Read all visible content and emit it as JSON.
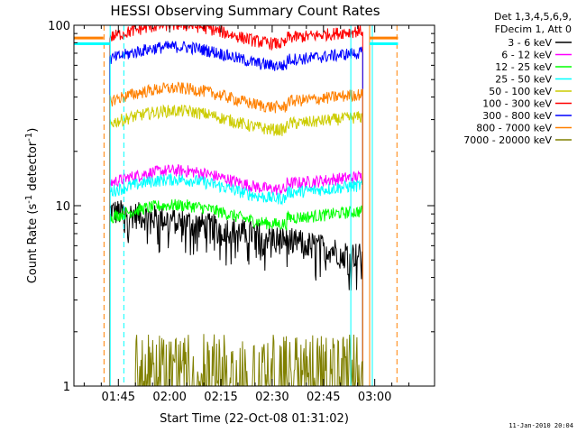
{
  "chart_data": {
    "type": "line",
    "title": "HESSI Observing Summary Count Rates",
    "xlabel": "Start Time (22-Oct-08 01:31:02)",
    "ylabel": "Count Rate (s",
    "ylabel_sup": "-1",
    "ylabel_rest": " detector",
    "ylabel_sup2": "-1",
    "ylabel_end": ")",
    "y_scale": "log",
    "ylim": [
      1,
      100
    ],
    "xlim_minutes": [
      1.53,
      3.3
    ],
    "x_ticks": [
      {
        "t": 105,
        "label": "01:45"
      },
      {
        "t": 120,
        "label": "02:00"
      },
      {
        "t": 135,
        "label": "02:15"
      },
      {
        "t": 150,
        "label": "02:30"
      },
      {
        "t": 165,
        "label": "02:45"
      },
      {
        "t": 180,
        "label": "03:00"
      }
    ],
    "y_ticks": [
      {
        "v": 1,
        "label": "1"
      },
      {
        "v": 10,
        "label": "10"
      },
      {
        "v": 100,
        "label": "100"
      }
    ],
    "legend_title": [
      "Det 1,3,4,5,6,9,",
      "FDecim 1, Att 0"
    ],
    "legend_position": "right",
    "series": [
      {
        "name": "3 - 6 keV",
        "color": "#000000",
        "start": 102.5,
        "end": 176.5,
        "level": 7.5,
        "shape": "decay"
      },
      {
        "name": "6 - 12 keV",
        "color": "#ff00ff",
        "start": 102.5,
        "end": 176.5,
        "level": 14,
        "shape": "hump"
      },
      {
        "name": "12 - 25 keV",
        "color": "#00ff00",
        "start": 102.5,
        "end": 176.5,
        "level": 9,
        "shape": "hump"
      },
      {
        "name": "25 - 50 keV",
        "color": "#00ffff",
        "start": 102.5,
        "end": 176.5,
        "level": 12.5,
        "shape": "hump"
      },
      {
        "name": "50 - 100 keV",
        "color": "#cccc00",
        "start": 102.5,
        "end": 176.5,
        "level": 30,
        "shape": "hump"
      },
      {
        "name": "100 - 300 keV",
        "color": "#ff0000",
        "start": 102.5,
        "end": 176.5,
        "level": 90,
        "shape": "hump"
      },
      {
        "name": "300 - 800 keV",
        "color": "#0000ff",
        "start": 102.5,
        "end": 176.5,
        "level": 68,
        "shape": "hump"
      },
      {
        "name": "800 - 7000 keV",
        "color": "#ff8000",
        "start": 102.5,
        "end": 176.5,
        "level": 40,
        "shape": "hump"
      },
      {
        "name": "7000 - 20000 keV",
        "color": "#808000",
        "start": 110,
        "end": 176.5,
        "level": 1.8,
        "shape": "spiky"
      }
    ],
    "vertical_markers": [
      {
        "t": 100.8,
        "color": "#ff8000",
        "dash": true
      },
      {
        "t": 102.6,
        "color": "#00ffff",
        "dash": false
      },
      {
        "t": 106.6,
        "color": "#00ffff",
        "dash": true
      },
      {
        "t": 173.0,
        "color": "#00ffff",
        "dash": false
      },
      {
        "t": 178.5,
        "color": "#ff8000",
        "dash": false
      },
      {
        "t": 179.3,
        "color": "#00ffff",
        "dash": false
      },
      {
        "t": 186.5,
        "color": "#ff8000",
        "dash": true
      }
    ],
    "edge_bars": [
      {
        "t0": 92,
        "t1": 100.6,
        "value": 85,
        "color": "#ff8000"
      },
      {
        "t0": 92,
        "t1": 102.5,
        "value": 79,
        "color": "#00ffff"
      },
      {
        "t0": 178.5,
        "t1": 186.8,
        "value": 85,
        "color": "#ff8000"
      },
      {
        "t0": 178.5,
        "t1": 186.8,
        "value": 79,
        "color": "#00ffff"
      }
    ],
    "timestamp": "11-Jan-2010 20:04"
  }
}
